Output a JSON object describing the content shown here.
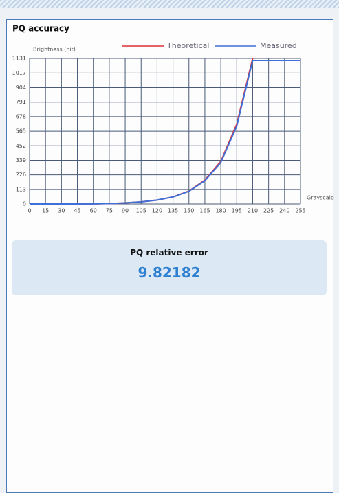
{
  "chart_data": {
    "type": "line",
    "title": "PQ accuracy",
    "ylabel": "Brightness (nit)",
    "xlabel": "Grayscale",
    "x": [
      0,
      15,
      30,
      45,
      60,
      75,
      90,
      105,
      120,
      135,
      150,
      165,
      180,
      195,
      210,
      225,
      240,
      255
    ],
    "series": [
      {
        "name": "Theoretical",
        "color": "#e0303a",
        "values": [
          0,
          0,
          0,
          0,
          1,
          3,
          8,
          16,
          30,
          55,
          100,
          185,
          330,
          620,
          1131,
          null,
          null,
          null
        ]
      },
      {
        "name": "Measured",
        "color": "#3f6fd8",
        "values": [
          0,
          0,
          0,
          0,
          1,
          3,
          8,
          16,
          30,
          54,
          98,
          180,
          322,
          605,
          1115,
          1115,
          1115,
          1115
        ]
      }
    ],
    "xlim": [
      0,
      255
    ],
    "ylim": [
      0,
      1131
    ],
    "xticks": [
      0,
      15,
      30,
      45,
      60,
      75,
      90,
      105,
      120,
      135,
      150,
      165,
      180,
      195,
      210,
      225,
      240,
      255
    ],
    "yticks": [
      0,
      113,
      226,
      339,
      452,
      565,
      678,
      791,
      904,
      1017,
      1131
    ],
    "grid": true
  },
  "result": {
    "label": "PQ relative error",
    "value": 9.82182
  }
}
